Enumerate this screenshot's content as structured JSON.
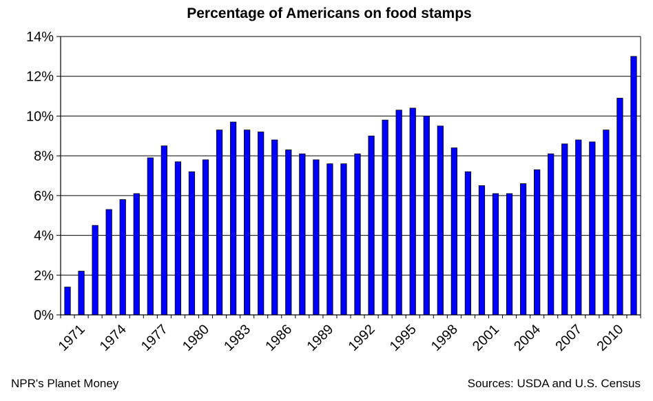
{
  "chart_data": {
    "type": "bar",
    "title": "Percentage of Americans on food stamps",
    "xlabel": "",
    "ylabel": "",
    "ylim": [
      0,
      14
    ],
    "yticks": [
      0,
      2,
      4,
      6,
      8,
      10,
      12,
      14
    ],
    "ytick_suffix": "%",
    "grid": true,
    "bar_color": "#0000FF",
    "categories": [
      1970,
      1971,
      1972,
      1973,
      1974,
      1975,
      1976,
      1977,
      1978,
      1979,
      1980,
      1981,
      1982,
      1983,
      1984,
      1985,
      1986,
      1987,
      1988,
      1989,
      1990,
      1991,
      1992,
      1993,
      1994,
      1995,
      1996,
      1997,
      1998,
      1999,
      2000,
      2001,
      2002,
      2003,
      2004,
      2005,
      2006,
      2007,
      2008,
      2009,
      2010,
      2011
    ],
    "xtick_labels": [
      "1971",
      "1974",
      "1977",
      "1980",
      "1983",
      "1986",
      "1989",
      "1992",
      "1995",
      "1998",
      "2001",
      "2004",
      "2007",
      "2010"
    ],
    "values": [
      1.4,
      2.2,
      4.5,
      5.3,
      5.8,
      6.1,
      7.9,
      8.5,
      7.7,
      7.2,
      7.8,
      9.3,
      9.7,
      9.3,
      9.2,
      8.8,
      8.3,
      8.1,
      7.8,
      7.6,
      7.6,
      8.1,
      9.0,
      9.8,
      10.3,
      10.4,
      10.0,
      9.5,
      8.4,
      7.2,
      6.5,
      6.1,
      6.1,
      6.6,
      7.3,
      8.1,
      8.6,
      8.8,
      8.7,
      9.3,
      10.9,
      13.0
    ]
  },
  "footer": {
    "credit": "NPR's Planet Money",
    "sources": "Sources: USDA and U.S. Census"
  }
}
